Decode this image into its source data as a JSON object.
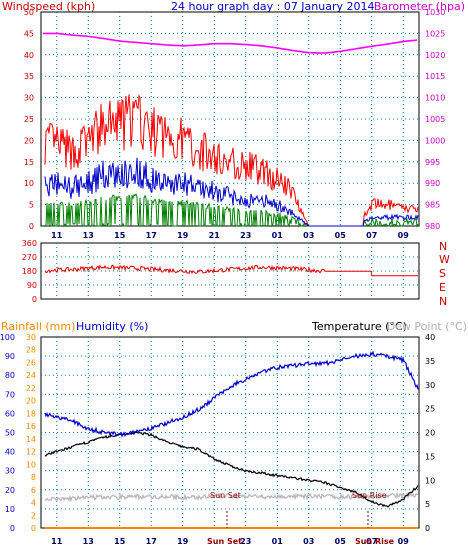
{
  "header": {
    "windspeed_label": "Windspeed (kph)",
    "title": "24 hour graph day : 07 January 2014",
    "barometer_label": "Barometer (hpa)",
    "rainfall_label": "Rainfall (mm)",
    "humidity_label": "Humidity (%)",
    "temperature_label": "Temperature (°C)",
    "dewpoint_label": "Dew Point (°C)"
  },
  "colors": {
    "wind_avg": "#0000cc",
    "wind_gust": "#ff0000",
    "wind_low": "#008000",
    "barometer": "#ff00ff",
    "direction": "#e00000",
    "humidity": "#0000cc",
    "temperature": "#000000",
    "dewpoint": "#b8b8b8",
    "rainfall": "#ff8800",
    "grid": "#008080",
    "axis_red": "#cc0000",
    "axis_blue": "#0000cc",
    "axis_magenta": "#cc00cc",
    "axis_orange": "#ff8800"
  },
  "x_ticks": [
    "11",
    "13",
    "15",
    "17",
    "19",
    "21",
    "23",
    "01",
    "03",
    "05",
    "07",
    "09"
  ],
  "x_ticks_bottom": [
    "11",
    "13",
    "15",
    "17",
    "19",
    "",
    "23",
    "01",
    "03",
    "05",
    "07",
    "09"
  ],
  "sun_annotations": {
    "sun_set": "Sun Set",
    "sun_rise": "Sun Rise",
    "sun_set_axis": "Sun Set",
    "sun_rise_axis": "Sun Rise"
  },
  "chart_data": [
    {
      "type": "line",
      "name": "wind-barometer",
      "x": [
        10,
        11,
        12,
        13,
        14,
        15,
        16,
        17,
        18,
        19,
        20,
        21,
        22,
        23,
        24,
        25,
        26,
        27,
        28,
        29,
        30,
        31,
        32,
        33,
        34
      ],
      "series": [
        {
          "values_gust": [
            20,
            19,
            17,
            20,
            23,
            24,
            25,
            22,
            21,
            20,
            18,
            16,
            15,
            14,
            13,
            11,
            8,
            0,
            0,
            0,
            0,
            5,
            5,
            4,
            4
          ]
        },
        {
          "values_avg": [
            9,
            10,
            9,
            10,
            12,
            12,
            13,
            11,
            10,
            10,
            9,
            8,
            7,
            6,
            6,
            5,
            3,
            0,
            0,
            0,
            0,
            2,
            2,
            2,
            2
          ]
        },
        {
          "values_barometer": [
            1025,
            1025,
            1024.6,
            1024.3,
            1023.8,
            1023.2,
            1022.9,
            1022.6,
            1022.3,
            1022.1,
            1022.3,
            1022.6,
            1022.6,
            1022.4,
            1022.1,
            1021.6,
            1021,
            1020.5,
            1020.4,
            1020.8,
            1021.4,
            1022,
            1022.5,
            1023.1,
            1023.5
          ]
        }
      ],
      "y_left_ticks": [
        "0",
        "5",
        "10",
        "15",
        "20",
        "25",
        "30",
        "35",
        "40",
        "45",
        "50"
      ],
      "y_right_ticks": [
        "980",
        "985",
        "990",
        "995",
        "1000",
        "1005",
        "1010",
        "1015",
        "1020",
        "1025",
        "1030"
      ],
      "ylim_left": [
        0,
        50
      ],
      "ylim_right": [
        980,
        1030
      ]
    },
    {
      "type": "line",
      "name": "wind-direction",
      "y_ticks": [
        "0",
        "90",
        "180",
        "270",
        "360"
      ],
      "direction_labels": [
        "N",
        "W",
        "S",
        "E",
        "N"
      ],
      "x": [
        10,
        12,
        14,
        16,
        18,
        20,
        22,
        24,
        26,
        28,
        29,
        30,
        31,
        32,
        34
      ],
      "values": [
        182,
        190,
        205,
        198,
        185,
        175,
        190,
        205,
        195,
        180,
        178,
        178,
        150,
        150,
        150
      ],
      "ylim": [
        0,
        360
      ]
    },
    {
      "type": "line",
      "name": "humidity-temperature",
      "x": [
        10,
        11,
        12,
        13,
        14,
        15,
        16,
        17,
        18,
        19,
        20,
        21,
        22,
        23,
        24,
        25,
        26,
        27,
        28,
        29,
        30,
        31,
        32,
        33,
        34
      ],
      "series": [
        {
          "values_humidity": [
            60,
            58,
            56,
            52,
            50,
            49,
            50,
            52,
            55,
            58,
            62,
            68,
            74,
            78,
            82,
            84,
            85,
            86,
            86,
            88,
            90,
            91,
            90,
            88,
            72
          ]
        },
        {
          "values_temperature": [
            15,
            16,
            17,
            18,
            19,
            19.5,
            20,
            19.5,
            18,
            17,
            16.5,
            14.5,
            13,
            12,
            11.5,
            11,
            10.5,
            10,
            9.5,
            8.5,
            7.5,
            5.5,
            4.5,
            6,
            9
          ]
        },
        {
          "values_dewpoint": [
            6,
            6,
            6.2,
            6.3,
            6.5,
            6.5,
            6.6,
            6.5,
            6.6,
            6.4,
            6.5,
            6.6,
            6.7,
            6.6,
            6.5,
            6.6,
            6.5,
            6.6,
            6.7,
            6.5,
            6.6,
            6.6,
            6.8,
            6.8,
            7
          ]
        },
        {
          "values_rainfall": [
            0,
            0,
            0,
            0,
            0,
            0,
            0,
            0,
            0,
            0,
            0,
            0,
            0,
            0,
            0,
            0,
            0,
            0,
            0,
            0,
            0,
            0,
            0,
            0,
            0
          ]
        }
      ],
      "y_humidity_ticks": [
        "0",
        "10",
        "20",
        "30",
        "40",
        "50",
        "60",
        "70",
        "80",
        "90",
        "100"
      ],
      "y_rain_ticks": [
        "0",
        "2",
        "4",
        "6",
        "8",
        "10",
        "12",
        "14",
        "16",
        "18",
        "20",
        "22",
        "24",
        "26",
        "28",
        "30"
      ],
      "y_temp_ticks": [
        "0",
        "5",
        "10",
        "15",
        "20",
        "25",
        "30",
        "35",
        "40"
      ],
      "ylim_humidity": [
        0,
        100
      ],
      "ylim_rain": [
        0,
        30
      ],
      "ylim_temp": [
        0,
        40
      ]
    }
  ]
}
